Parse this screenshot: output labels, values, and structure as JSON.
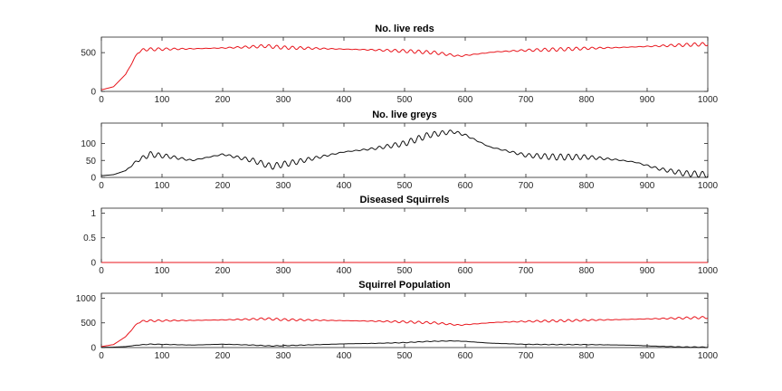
{
  "colors": {
    "red": "#e8141b",
    "black": "#111111",
    "axis": "#262626",
    "background": "#ffffff"
  },
  "chart_data": [
    {
      "type": "line",
      "title": "No. live reds",
      "xlabel": "",
      "ylabel": "",
      "xlim": [
        0,
        1000
      ],
      "ylim": [
        0,
        700
      ],
      "xticks": [
        0,
        100,
        200,
        300,
        400,
        500,
        600,
        700,
        800,
        900,
        1000
      ],
      "yticks": [
        0,
        500
      ],
      "grid": false,
      "series": [
        {
          "color": "#e8141b",
          "shape": {
            "x": [
              0,
              20,
              40,
              60,
              70,
              100,
              150,
              200,
              250,
              270,
              300,
              350,
              400,
              450,
              500,
              550,
              590,
              650,
              700,
              750,
              800,
              850,
              900,
              950,
              1000
            ],
            "y": [
              20,
              60,
              220,
              500,
              540,
              545,
              550,
              560,
              575,
              585,
              565,
              555,
              545,
              535,
              520,
              500,
              455,
              510,
              530,
              540,
              555,
              565,
              580,
              595,
              610
            ]
          },
          "oscillation": {
            "amplitude": 45,
            "period": 13
          }
        }
      ]
    },
    {
      "type": "line",
      "title": "No. live greys",
      "xlabel": "",
      "ylabel": "",
      "xlim": [
        0,
        1000
      ],
      "ylim": [
        0,
        160
      ],
      "xticks": [
        0,
        100,
        200,
        300,
        400,
        500,
        600,
        700,
        800,
        900,
        1000
      ],
      "yticks": [
        0,
        50,
        100
      ],
      "grid": false,
      "series": [
        {
          "color": "#111111",
          "shape": {
            "x": [
              0,
              20,
              40,
              60,
              80,
              110,
              150,
              200,
              250,
              280,
              320,
              400,
              450,
              500,
              540,
              580,
              600,
              640,
              700,
              750,
              800,
              850,
              880,
              920,
              960,
              1000
            ],
            "y": [
              5,
              8,
              20,
              50,
              68,
              62,
              50,
              68,
              50,
              32,
              45,
              75,
              85,
              100,
              125,
              135,
              125,
              90,
              65,
              60,
              60,
              52,
              45,
              25,
              12,
              8
            ]
          },
          "oscillation": {
            "amplitude": 18,
            "period": 13
          }
        }
      ]
    },
    {
      "type": "line",
      "title": "Diseased Squirrels",
      "xlabel": "",
      "ylabel": "",
      "xlim": [
        0,
        1000
      ],
      "ylim": [
        0,
        1.1
      ],
      "xticks": [
        0,
        100,
        200,
        300,
        400,
        500,
        600,
        700,
        800,
        900,
        1000
      ],
      "yticks": [
        0,
        0.5,
        1
      ],
      "grid": false,
      "series": [
        {
          "color": "#e8141b",
          "shape": {
            "x": [
              0,
              1000
            ],
            "y": [
              0,
              0
            ]
          },
          "oscillation": {
            "amplitude": 0,
            "period": 13
          }
        }
      ]
    },
    {
      "type": "line",
      "title": "Squirrel Population",
      "xlabel": "",
      "ylabel": "",
      "xlim": [
        0,
        1000
      ],
      "ylim": [
        0,
        1100
      ],
      "xticks": [
        0,
        100,
        200,
        300,
        400,
        500,
        600,
        700,
        800,
        900,
        1000
      ],
      "yticks": [
        0,
        500,
        1000
      ],
      "grid": false,
      "series": [
        {
          "color": "#e8141b",
          "shape": {
            "x": [
              0,
              20,
              40,
              60,
              70,
              100,
              150,
              200,
              250,
              270,
              300,
              350,
              400,
              450,
              500,
              550,
              590,
              650,
              700,
              750,
              800,
              850,
              900,
              950,
              1000
            ],
            "y": [
              20,
              60,
              220,
              500,
              540,
              545,
              550,
              560,
              575,
              585,
              565,
              555,
              545,
              535,
              520,
              500,
              455,
              510,
              530,
              540,
              555,
              565,
              580,
              595,
              610
            ]
          },
          "oscillation": {
            "amplitude": 45,
            "period": 13
          }
        },
        {
          "color": "#111111",
          "shape": {
            "x": [
              0,
              20,
              40,
              60,
              80,
              110,
              150,
              200,
              250,
              280,
              320,
              400,
              450,
              500,
              540,
              580,
              600,
              640,
              700,
              750,
              800,
              850,
              880,
              920,
              960,
              1000
            ],
            "y": [
              5,
              8,
              20,
              50,
              68,
              62,
              50,
              68,
              50,
              32,
              45,
              75,
              85,
              100,
              125,
              135,
              125,
              90,
              65,
              60,
              60,
              52,
              45,
              25,
              12,
              8
            ]
          },
          "oscillation": {
            "amplitude": 12,
            "period": 13
          }
        }
      ]
    }
  ]
}
